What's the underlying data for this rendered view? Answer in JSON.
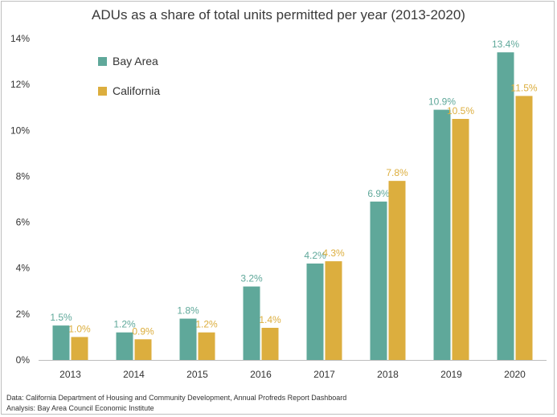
{
  "chart_data": {
    "type": "bar",
    "title": "ADUs as a share of total units permitted per year (2013-2020)",
    "categories": [
      "2013",
      "2014",
      "2015",
      "2016",
      "2017",
      "2018",
      "2019",
      "2020"
    ],
    "series": [
      {
        "name": "Bay Area",
        "color": "#5fa89a",
        "values": [
          1.5,
          1.2,
          1.8,
          3.2,
          4.2,
          6.9,
          10.9,
          13.4
        ],
        "labels": [
          "1.5%",
          "1.2%",
          "1.8%",
          "3.2%",
          "4.2%",
          "6.9%",
          "10.9%",
          "13.4%"
        ]
      },
      {
        "name": "California",
        "color": "#dcae3e",
        "values": [
          1.0,
          0.9,
          1.2,
          1.4,
          4.3,
          7.8,
          10.5,
          11.5
        ],
        "labels": [
          "1.0%",
          "0.9%",
          "1.2%",
          "1.4%",
          "4.3%",
          "7.8%",
          "10.5%",
          "11.5%"
        ]
      }
    ],
    "yticks": [
      "0%",
      "2%",
      "4%",
      "6%",
      "8%",
      "10%",
      "12%",
      "14%"
    ],
    "ylim": [
      0,
      14
    ],
    "xlabel": "",
    "ylabel": "",
    "legend_position": "top-left",
    "grid": false
  },
  "source": {
    "line1": "Data: California Department of Housing and Community Development, Annual Profreds Report Dashboard",
    "line2": "Analysis: Bay Area Council Economic Institute"
  }
}
